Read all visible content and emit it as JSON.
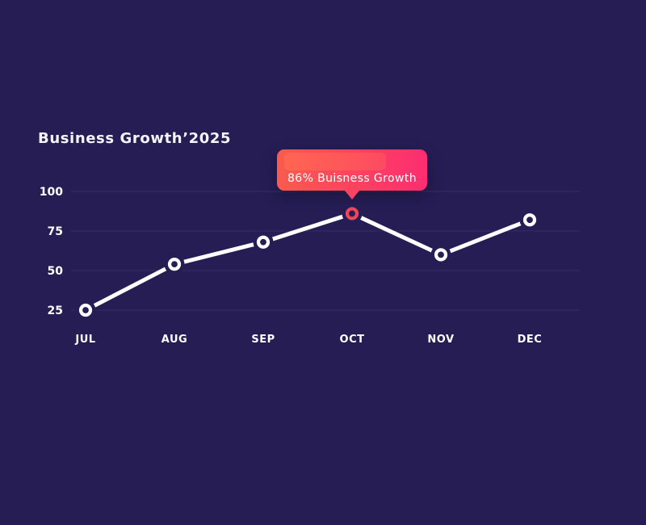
{
  "page": {
    "background_color": "#251d54"
  },
  "title": {
    "text": "Business Growth’2025"
  },
  "tooltip": {
    "text": "86% Buisness Growth",
    "gradient_start": "#f95b4d",
    "gradient_end": "#fc2d71",
    "highlight_gradient_start": "#ff6651",
    "highlight_gradient_end": "#fd4b61",
    "pointer_color": "#fa4263"
  },
  "chart_data": {
    "type": "line",
    "title": "Business Growth’2025",
    "xlabel": "",
    "ylabel": "",
    "categories": [
      "JUL",
      "AUG",
      "SEP",
      "OCT",
      "NOV",
      "DEC"
    ],
    "values": [
      25,
      54,
      68,
      86,
      60,
      82
    ],
    "highlighted_index": 3,
    "highlight_annotation": "86% Buisness Growth",
    "yticks": [
      100,
      75,
      50,
      25
    ],
    "ylim": [
      25,
      100
    ],
    "grid": true,
    "legend": "none",
    "line_color": "#ffffff",
    "marker_ring_color": "#ffffff",
    "marker_fill_color": "#251d54",
    "highlight_marker_color": "#ef4757",
    "gridline_color": "#37305f",
    "axis_label_color": "#ffffff"
  }
}
